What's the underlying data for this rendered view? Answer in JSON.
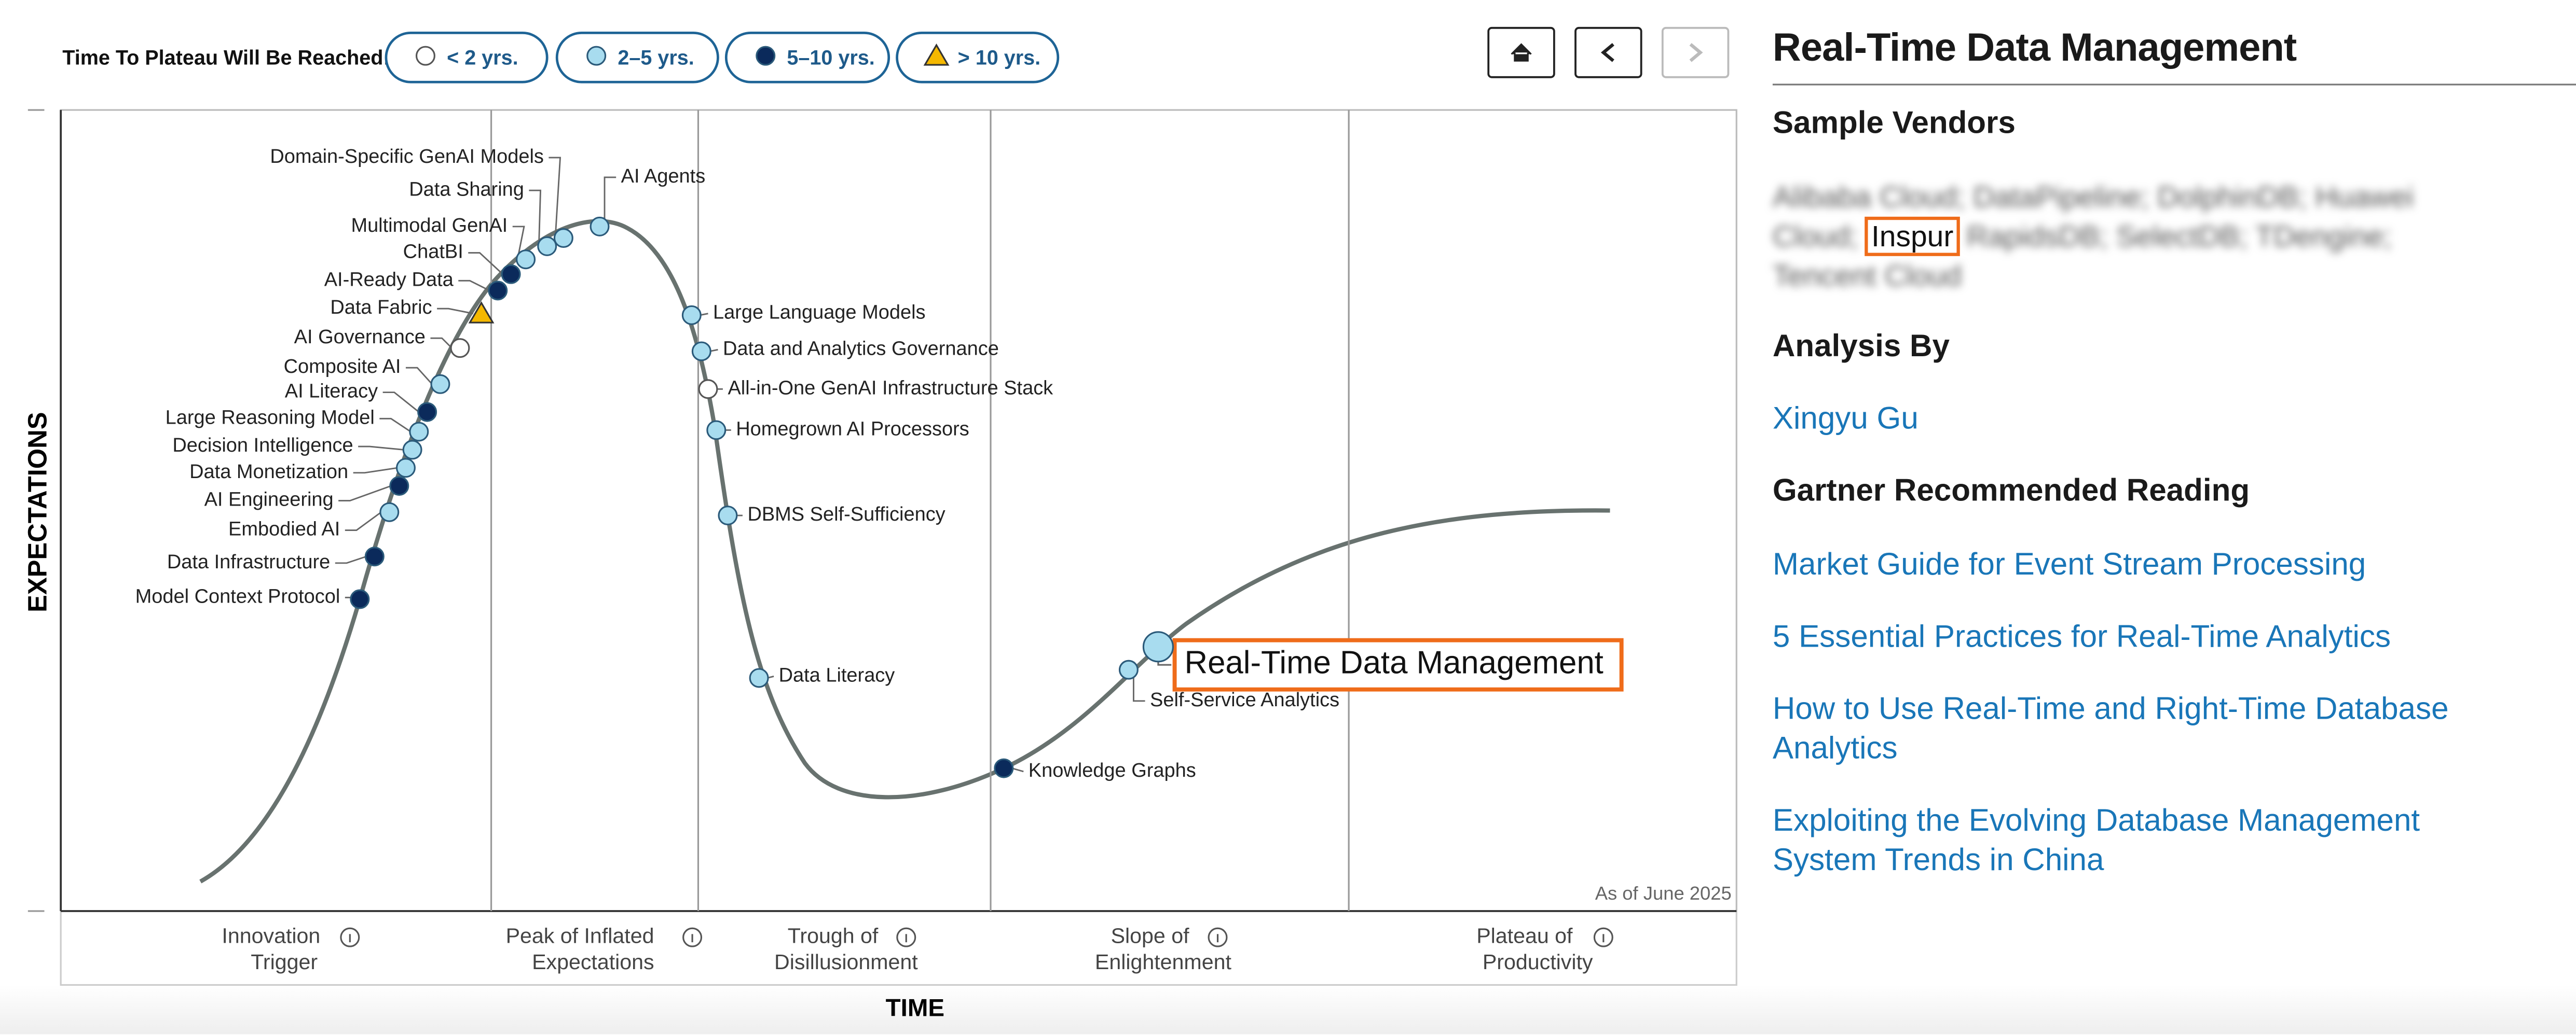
{
  "legend": {
    "title": "Time To Plateau Will Be Reached:",
    "items": [
      {
        "label": "< 2 yrs.",
        "color": "#ffffff",
        "marker": "circle"
      },
      {
        "label": "2–5 yrs.",
        "color": "#a8dcef",
        "marker": "circle"
      },
      {
        "label": "5–10 yrs.",
        "color": "#0b2a5b",
        "marker": "circle"
      },
      {
        "label": "> 10 yrs.",
        "color": "#f5b800",
        "marker": "triangle"
      }
    ]
  },
  "chart": {
    "y_axis": "EXPECTATIONS",
    "x_axis": "TIME",
    "as_of": "As of June 2025",
    "phases": [
      [
        "Innovation",
        "Trigger"
      ],
      [
        "Peak of Inflated",
        "Expectations"
      ],
      [
        "Trough of",
        "Disillusionment"
      ],
      [
        "Slope of",
        "Enlightenment"
      ],
      [
        "Plateau of",
        "Productivity"
      ]
    ],
    "technologies": [
      {
        "name": "Domain-Specific GenAI Models",
        "plateau": "2–5 yrs."
      },
      {
        "name": "Data Sharing",
        "plateau": "2–5 yrs."
      },
      {
        "name": "Multimodal GenAI",
        "plateau": "2–5 yrs."
      },
      {
        "name": "ChatBI",
        "plateau": "5–10 yrs."
      },
      {
        "name": "AI-Ready Data",
        "plateau": "5–10 yrs."
      },
      {
        "name": "Data Fabric",
        "plateau": "> 10 yrs."
      },
      {
        "name": "AI Governance",
        "plateau": "< 2 yrs."
      },
      {
        "name": "Composite AI",
        "plateau": "2–5 yrs."
      },
      {
        "name": "AI Literacy",
        "plateau": "5–10 yrs."
      },
      {
        "name": "Large Reasoning Model",
        "plateau": "2–5 yrs."
      },
      {
        "name": "Decision Intelligence",
        "plateau": "2–5 yrs."
      },
      {
        "name": "Data Monetization",
        "plateau": "2–5 yrs."
      },
      {
        "name": "AI Engineering",
        "plateau": "5–10 yrs."
      },
      {
        "name": "Embodied AI",
        "plateau": "2–5 yrs."
      },
      {
        "name": "Data Infrastructure",
        "plateau": "5–10 yrs."
      },
      {
        "name": "Model Context Protocol",
        "plateau": "5–10 yrs."
      },
      {
        "name": "AI Agents",
        "plateau": "2–5 yrs."
      },
      {
        "name": "Large Language Models",
        "plateau": "2–5 yrs."
      },
      {
        "name": "Data and Analytics Governance",
        "plateau": "2–5 yrs."
      },
      {
        "name": "All-in-One GenAI Infrastructure Stack",
        "plateau": "< 2 yrs."
      },
      {
        "name": "Homegrown AI Processors",
        "plateau": "2–5 yrs."
      },
      {
        "name": "DBMS Self-Sufficiency",
        "plateau": "2–5 yrs."
      },
      {
        "name": "Data Literacy",
        "plateau": "2–5 yrs."
      },
      {
        "name": "Knowledge Graphs",
        "plateau": "5–10 yrs."
      },
      {
        "name": "Self-Service Analytics",
        "plateau": "2–5 yrs."
      },
      {
        "name": "Real-Time Data Management",
        "plateau": "2–5 yrs.",
        "highlighted": true
      }
    ]
  },
  "side": {
    "title": "Real-Time Data Management",
    "vendors_heading": "Sample Vendors",
    "vendors": [
      "Alibaba Cloud; DataPipeline; DolphinDB; Huawei Cloud;",
      "Inspur",
      "RapidsDB; SelectDB; TDengine; Tencent Cloud"
    ],
    "analysis_heading": "Analysis By",
    "analyst": "Xingyu Gu",
    "reading_heading": "Gartner Recommended Reading",
    "readings": [
      "Market Guide for Event Stream Processing",
      "5 Essential Practices for Real-Time Analytics",
      "How to Use Real-Time and Right-Time Database Analytics",
      "Exploiting the Evolving Database Management System Trends in China"
    ]
  }
}
